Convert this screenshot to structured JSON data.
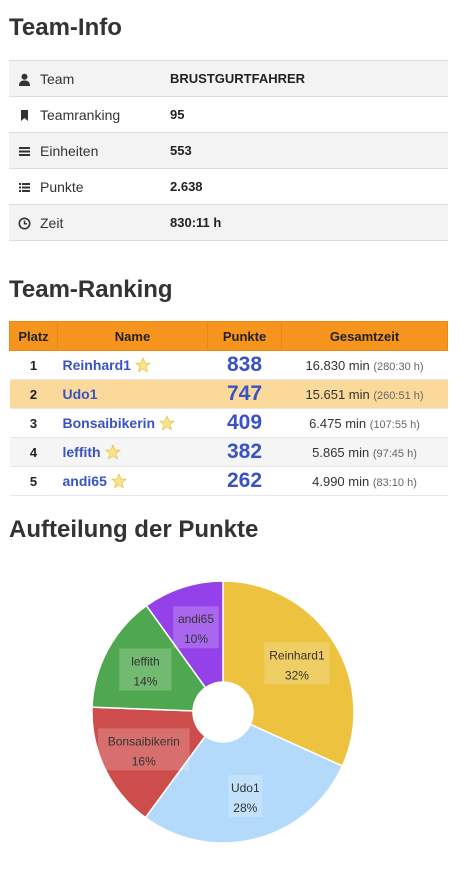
{
  "team_info": {
    "title": "Team-Info",
    "rows": [
      {
        "icon": "user-icon",
        "label": "Team",
        "value": "BRUSTGURTFAHRER"
      },
      {
        "icon": "bookmark-icon",
        "label": "Teamranking",
        "value": "95"
      },
      {
        "icon": "stack-icon",
        "label": "Einheiten",
        "value": "553"
      },
      {
        "icon": "list-icon",
        "label": "Punkte",
        "value": "2.638"
      },
      {
        "icon": "clock-icon",
        "label": "Zeit",
        "value": "830:11 h"
      }
    ]
  },
  "team_ranking": {
    "title": "Team-Ranking",
    "headers": {
      "platz": "Platz",
      "name": "Name",
      "punkte": "Punkte",
      "gesamtzeit": "Gesamtzeit"
    },
    "rows": [
      {
        "platz": "1",
        "name": "Reinhard1",
        "star": true,
        "punkte": "838",
        "zeit": "16.830 min",
        "zeit_sub": "(280:30 h)"
      },
      {
        "platz": "2",
        "name": "Udo1",
        "star": false,
        "punkte": "747",
        "zeit": "15.651 min",
        "zeit_sub": "(260:51 h)"
      },
      {
        "platz": "3",
        "name": "Bonsaibikerin",
        "star": true,
        "punkte": "409",
        "zeit": "6.475 min",
        "zeit_sub": "(107:55 h)"
      },
      {
        "platz": "4",
        "name": "leffith",
        "star": true,
        "punkte": "382",
        "zeit": "5.865 min",
        "zeit_sub": "(97:45 h)"
      },
      {
        "platz": "5",
        "name": "andi65",
        "star": true,
        "punkte": "262",
        "zeit": "4.990 min",
        "zeit_sub": "(83:10 h)"
      }
    ]
  },
  "points_split": {
    "title": "Aufteilung der Punkte"
  },
  "chart_data": {
    "type": "pie",
    "donut": true,
    "categories": [
      "Reinhard1",
      "Udo1",
      "Bonsaibikerin",
      "leffith",
      "andi65"
    ],
    "values": [
      838,
      747,
      409,
      382,
      262
    ],
    "percent_labels": [
      "32%",
      "28%",
      "16%",
      "14%",
      "10%"
    ],
    "colors": [
      "#ecc23f",
      "#b3dafa",
      "#cd4c4c",
      "#4fa84f",
      "#9441ea"
    ]
  }
}
